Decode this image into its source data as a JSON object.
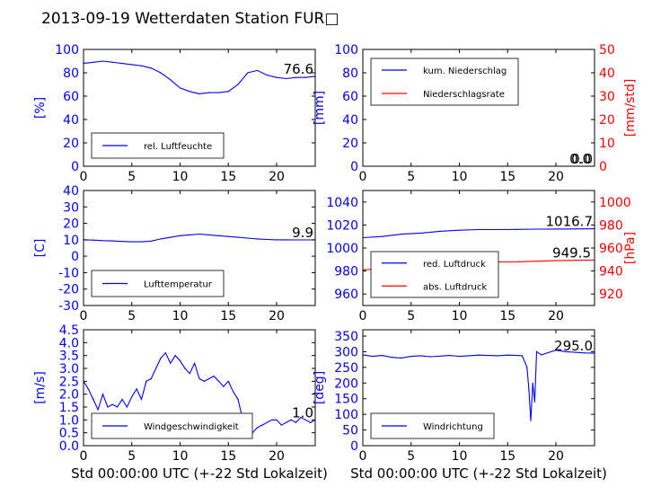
{
  "title": "2013-09-19 Wetterdaten Station FUR□",
  "colors": {
    "left_axis": "#0000ff",
    "right_axis": "#ff0000",
    "frame": "#000000"
  },
  "chart_data": [
    {
      "type": "line",
      "panel": "top-left",
      "ylabel": "[%]",
      "xlim": [
        0,
        24
      ],
      "ylim": [
        0,
        100
      ],
      "xticks": [
        0,
        5,
        10,
        15,
        20
      ],
      "yticks": [
        0,
        20,
        40,
        60,
        80,
        100
      ],
      "legend": "bottom-left",
      "value_label": "76.6",
      "series": [
        {
          "name": "rel. Luftfeuchte",
          "color": "#0000ff",
          "axis": "left",
          "x": [
            0,
            1,
            2,
            3,
            4,
            5,
            6,
            7,
            8,
            9,
            10,
            11,
            12,
            13,
            14,
            15,
            16,
            17,
            18,
            19,
            20,
            21,
            22,
            23,
            24
          ],
          "y": [
            88,
            89,
            90,
            89,
            88,
            87,
            86,
            84,
            80,
            74,
            67,
            64,
            62,
            63,
            63,
            64,
            70,
            80,
            82,
            78,
            76,
            75,
            76,
            76,
            77
          ]
        }
      ]
    },
    {
      "type": "line",
      "panel": "top-right",
      "ylabel": "[mm]",
      "ylabel_right": "[mm/std]",
      "xlim": [
        0,
        24
      ],
      "ylim": [
        0,
        100
      ],
      "ylim_right": [
        0,
        50
      ],
      "xticks": [
        0,
        5,
        10,
        15,
        20
      ],
      "yticks": [
        0,
        20,
        40,
        60,
        80,
        100
      ],
      "yticks_right": [
        0,
        10,
        20,
        30,
        40,
        50
      ],
      "legend": "top-left",
      "value_label": "0.0",
      "value_label_right": "0.0",
      "series": [
        {
          "name": "kum. Niederschlag",
          "color": "#0000ff",
          "axis": "left",
          "x": [
            0,
            24
          ],
          "y": [
            0,
            0
          ]
        },
        {
          "name": "Niederschlagsrate",
          "color": "#ff0000",
          "axis": "right",
          "x": [
            0,
            24
          ],
          "y": [
            0,
            0
          ]
        }
      ]
    },
    {
      "type": "line",
      "panel": "middle-left",
      "ylabel": "[C]",
      "xlim": [
        0,
        24
      ],
      "ylim": [
        -30,
        40
      ],
      "xticks": [
        0,
        5,
        10,
        15,
        20
      ],
      "yticks": [
        -30,
        -20,
        -10,
        0,
        10,
        20,
        30,
        40
      ],
      "legend": "bottom-left",
      "value_label": "9.9",
      "series": [
        {
          "name": "Lufttemperatur",
          "color": "#0000ff",
          "axis": "left",
          "x": [
            0,
            1,
            2,
            3,
            4,
            5,
            6,
            7,
            8,
            9,
            10,
            11,
            12,
            13,
            14,
            15,
            16,
            17,
            18,
            19,
            20,
            21,
            22,
            23,
            24
          ],
          "y": [
            10,
            9.8,
            9.5,
            9.3,
            9,
            8.8,
            8.8,
            9.2,
            10.5,
            11.5,
            12.5,
            13,
            13.5,
            13,
            12.5,
            12,
            11.5,
            11,
            10.5,
            10.2,
            10,
            10,
            9.9,
            9.9,
            9.9
          ]
        }
      ]
    },
    {
      "type": "line",
      "panel": "middle-right",
      "ylabel": "",
      "ylabel_right": "[hPa]",
      "xlim": [
        0,
        24
      ],
      "ylim": [
        950,
        1050
      ],
      "ylim_right": [
        910,
        1010
      ],
      "xticks": [
        0,
        5,
        10,
        15,
        20
      ],
      "yticks": [
        960,
        980,
        1000,
        1020,
        1040
      ],
      "yticks_right": [
        920,
        940,
        960,
        980,
        1000
      ],
      "legend": "bottom-left",
      "value_label": "1016.7",
      "value_label_right": "949.5",
      "series": [
        {
          "name": "red. Luftdruck",
          "color": "#0000ff",
          "axis": "left",
          "x": [
            0,
            2,
            4,
            6,
            8,
            10,
            12,
            14,
            16,
            18,
            20,
            22,
            24
          ],
          "y": [
            1009,
            1010,
            1012,
            1013,
            1014.5,
            1015.5,
            1016,
            1016,
            1016.2,
            1016.4,
            1016.5,
            1016.6,
            1016.7
          ]
        },
        {
          "name": "abs. Luftdruck",
          "color": "#ff0000",
          "axis": "right",
          "x": [
            0,
            2,
            4,
            6,
            8,
            10,
            12,
            14,
            16,
            18,
            20,
            22,
            24
          ],
          "y": [
            941,
            942,
            943,
            944.5,
            946,
            947,
            947.5,
            947.8,
            948,
            948.5,
            949,
            949.3,
            949.5
          ]
        }
      ]
    },
    {
      "type": "line",
      "panel": "bottom-left",
      "ylabel": "[m/s]",
      "xlabel": "Std 00:00:00 UTC (+-22 Std Lokalzeit)",
      "xlim": [
        0,
        24
      ],
      "ylim": [
        0,
        4.5
      ],
      "xticks": [
        0,
        5,
        10,
        15,
        20
      ],
      "yticks": [
        0.0,
        0.5,
        1.0,
        1.5,
        2.0,
        2.5,
        3.0,
        3.5,
        4.0,
        4.5
      ],
      "legend": "bottom-left",
      "value_label": "1.0",
      "series": [
        {
          "name": "Windgeschwindigkeit",
          "color": "#0000ff",
          "axis": "left",
          "x": [
            0,
            0.5,
            1,
            1.5,
            2,
            2.5,
            3,
            3.5,
            4,
            4.5,
            5,
            5.5,
            6,
            6.5,
            7,
            7.5,
            8,
            8.5,
            9,
            9.5,
            10,
            10.5,
            11,
            11.5,
            12,
            12.5,
            13,
            13.5,
            14,
            14.5,
            15,
            15.5,
            16,
            16.5,
            17,
            17.5,
            18,
            18.5,
            19,
            19.5,
            20,
            20.5,
            21,
            21.5,
            22,
            22.5,
            23,
            23.5,
            24
          ],
          "y": [
            2.5,
            2.2,
            1.8,
            1.4,
            2.0,
            1.5,
            1.6,
            1.5,
            1.8,
            1.5,
            1.9,
            2.2,
            1.8,
            2.5,
            2.6,
            3.0,
            3.4,
            3.6,
            3.2,
            3.5,
            3.3,
            3.0,
            2.8,
            3.2,
            2.6,
            2.5,
            2.6,
            2.7,
            2.5,
            2.3,
            2.5,
            2.1,
            1.8,
            1.0,
            0.3,
            0.5,
            0.7,
            0.8,
            0.9,
            1.0,
            1.0,
            0.8,
            0.9,
            1.0,
            0.9,
            1.1,
            1.0,
            0.9,
            1.0
          ]
        }
      ]
    },
    {
      "type": "line",
      "panel": "bottom-right",
      "ylabel": "[deg]",
      "xlabel": "Std 00:00:00 UTC (+-22 Std Lokalzeit)",
      "xlim": [
        0,
        24
      ],
      "ylim": [
        0,
        370
      ],
      "xticks": [
        0,
        5,
        10,
        15,
        20
      ],
      "yticks": [
        0,
        50,
        100,
        150,
        200,
        250,
        300,
        350
      ],
      "legend": "bottom-left",
      "value_label": "295.0",
      "series": [
        {
          "name": "Windrichtung",
          "color": "#0000ff",
          "axis": "left",
          "x": [
            0,
            1,
            2,
            3,
            4,
            5,
            6,
            7,
            8,
            9,
            10,
            11,
            12,
            13,
            14,
            15,
            16,
            16.5,
            17,
            17.2,
            17.4,
            17.6,
            17.8,
            18,
            18.5,
            19,
            20,
            21,
            22,
            23,
            24
          ],
          "y": [
            290,
            285,
            288,
            282,
            280,
            285,
            287,
            284,
            286,
            288,
            285,
            287,
            289,
            288,
            287,
            289,
            288,
            287,
            250,
            180,
            80,
            200,
            140,
            300,
            290,
            295,
            305,
            300,
            298,
            296,
            295
          ]
        }
      ]
    }
  ]
}
